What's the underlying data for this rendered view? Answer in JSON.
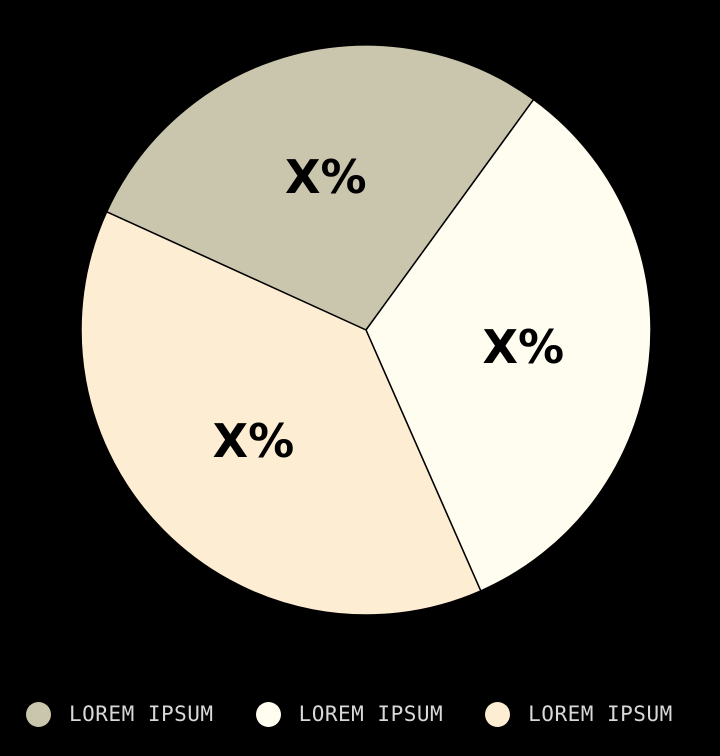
{
  "colors": {
    "background": "#000000",
    "outline": "#000000",
    "legend_text": "#d9d9d9"
  },
  "chart_data": {
    "type": "pie",
    "slices": [
      {
        "name": "LOREM IPSUM",
        "label": "X%",
        "value": 28.2,
        "color": "#cac6ad"
      },
      {
        "name": "LOREM IPSUM",
        "label": "X%",
        "value": 33.4,
        "color": "#fffdef"
      },
      {
        "name": "LOREM IPSUM",
        "label": "X%",
        "value": 38.4,
        "color": "#fdedd3"
      }
    ],
    "legend_position": "bottom"
  }
}
